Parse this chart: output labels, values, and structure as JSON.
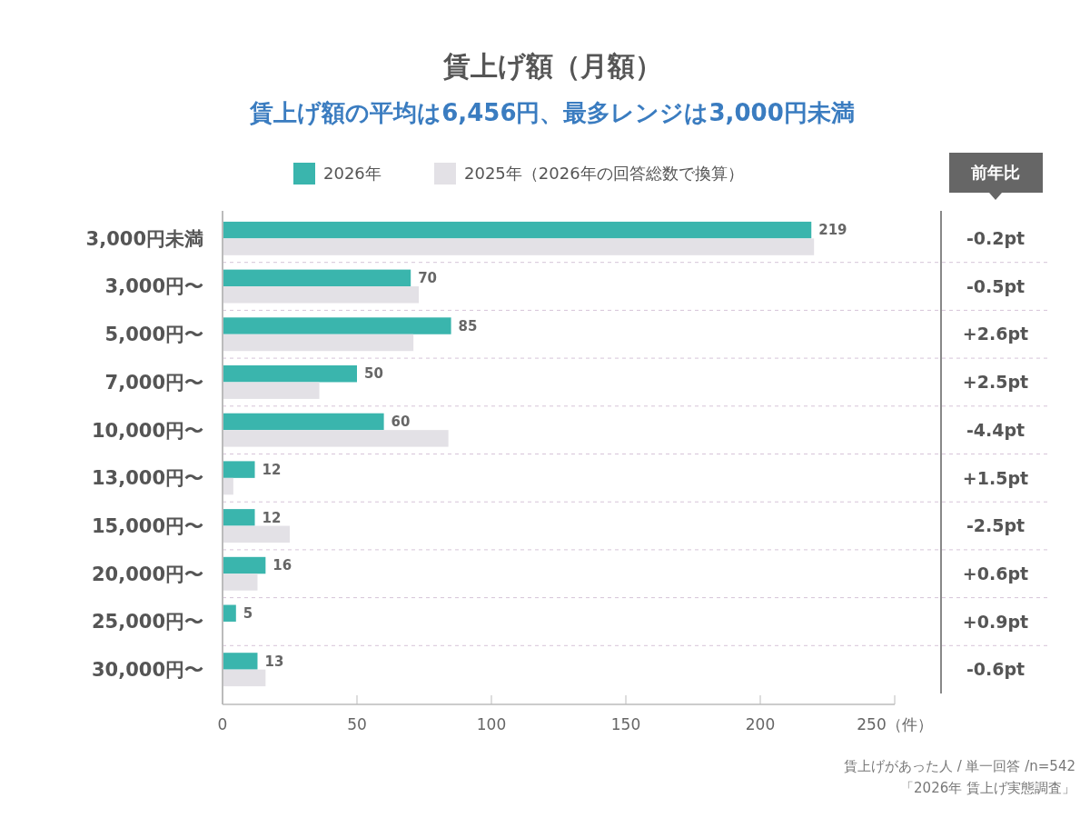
{
  "chart_data": {
    "type": "bar",
    "orientation": "horizontal",
    "title": "賃上げ額（月額）",
    "subtitle": "賃上げ額の平均は6,456円、最多レンジは3,000円未満",
    "categories": [
      "3,000円未満",
      "3,000円〜",
      "5,000円〜",
      "7,000円〜",
      "10,000円〜",
      "13,000円〜",
      "15,000円〜",
      "20,000円〜",
      "25,000円〜",
      "30,000円〜"
    ],
    "series": [
      {
        "name": "2026年",
        "color": "#3ab5ad",
        "values": [
          219,
          70,
          85,
          50,
          60,
          12,
          12,
          16,
          5,
          13
        ],
        "value_labels": [
          "219",
          "70",
          "85",
          "50",
          "60",
          "12",
          "12",
          "16",
          "5",
          "13"
        ]
      },
      {
        "name": "2025年（2026年の回答総数で換算）",
        "color": "#e3e1e6",
        "values": [
          220,
          73,
          71,
          36,
          84,
          4,
          25,
          13,
          0,
          16
        ]
      }
    ],
    "xlim": [
      0,
      250
    ],
    "xticks": [
      0,
      50,
      100,
      150,
      200,
      {
        "value": 250,
        "label": "250（件）"
      }
    ],
    "legend": "top",
    "annotations": [
      "前年比",
      "-0.2pt",
      "-0.5pt",
      "+2.6pt",
      "+2.5pt",
      "-4.4pt",
      "+1.5pt",
      "-2.5pt",
      "+0.6pt",
      "+0.9pt",
      "-0.6pt",
      "賃上げがあった人 / 単一回答 /n=542",
      "「2026年 賃上げ実態調査」"
    ]
  }
}
